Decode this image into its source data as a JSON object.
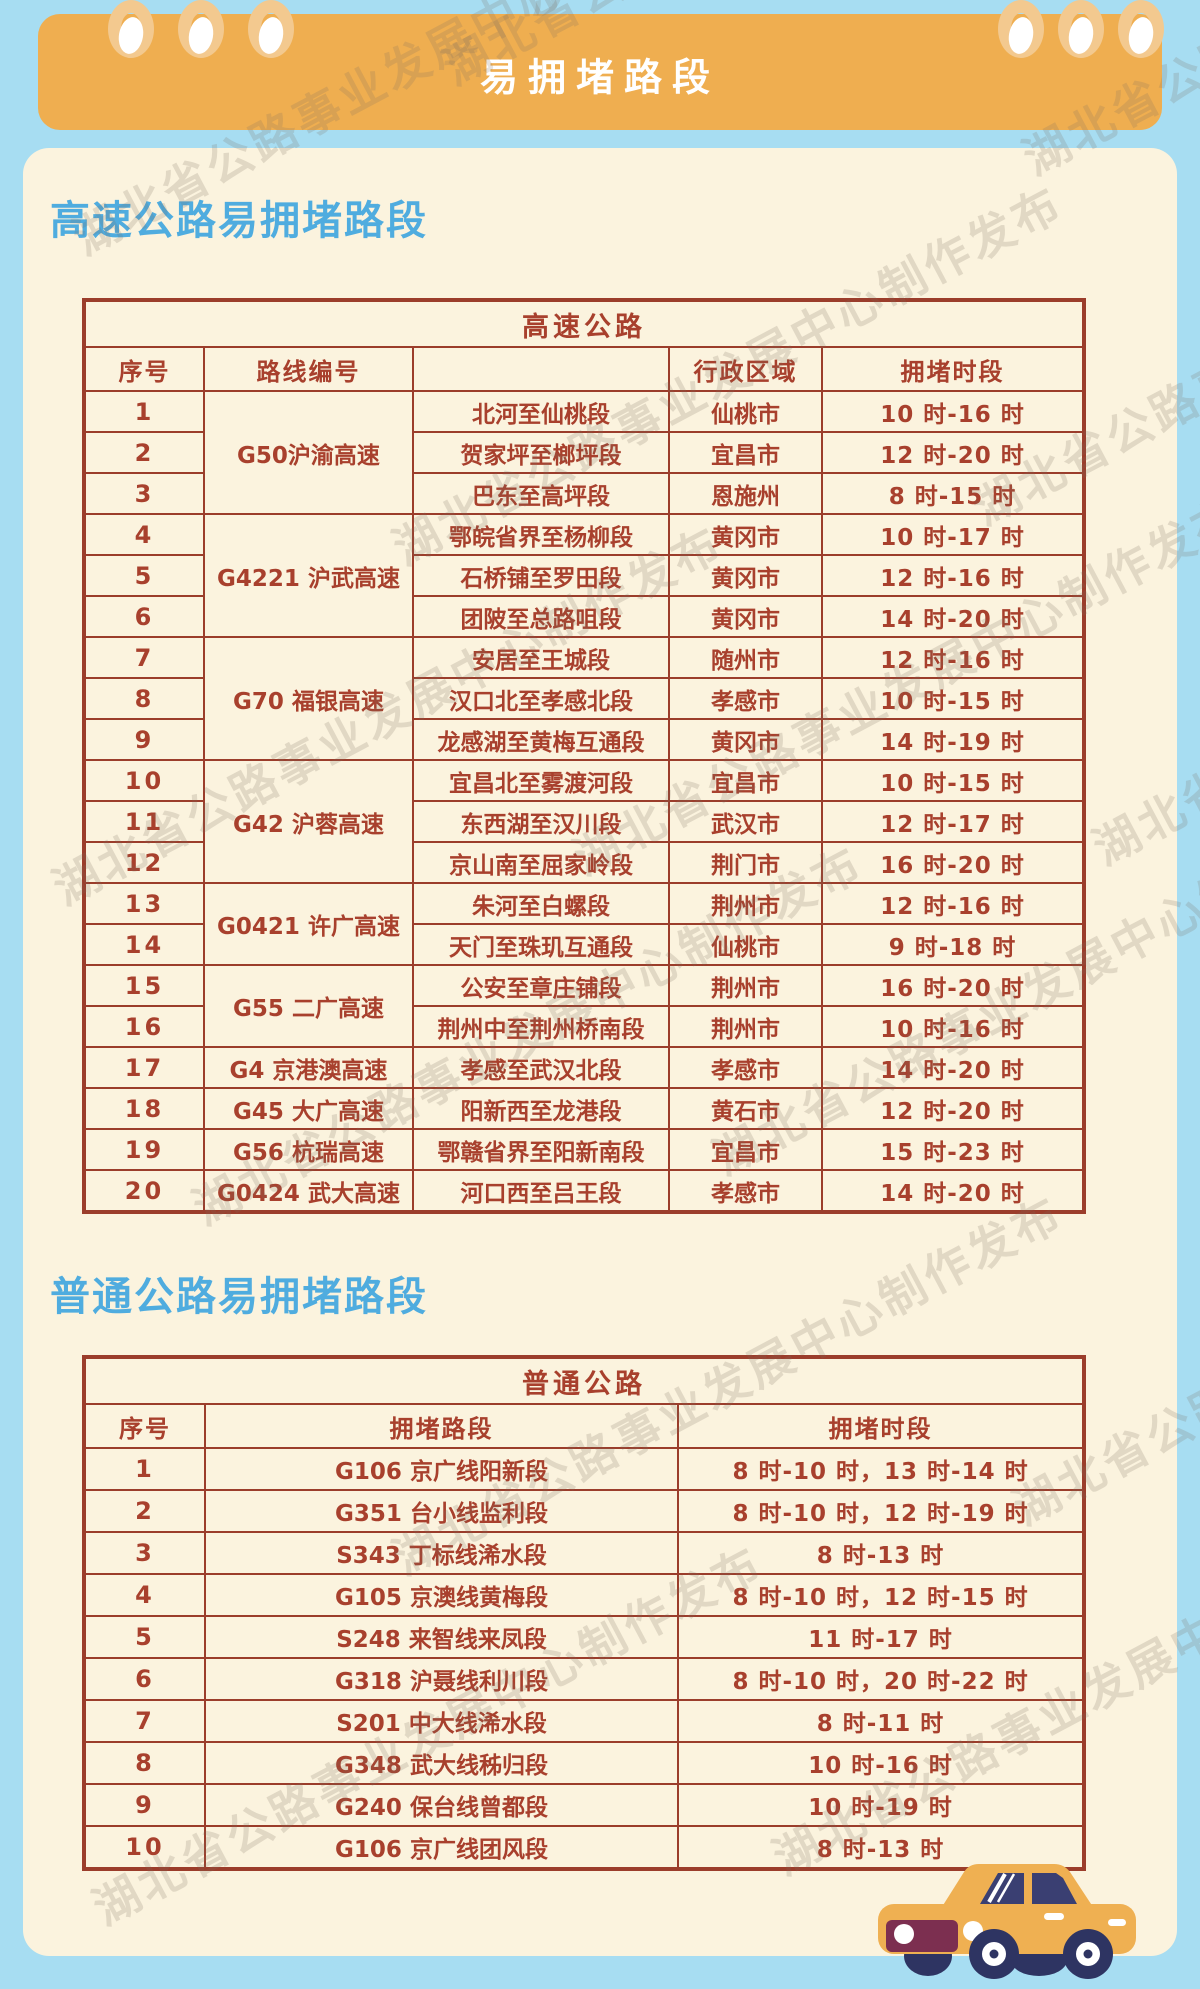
{
  "header": {
    "title": "易拥堵路段"
  },
  "watermark_text": "湖北省公路事业发展中心制作发布",
  "colors": {
    "background_blue": "#A7DDF2",
    "banner_orange": "#EFAE50",
    "ring_orange": "#F3C98F",
    "card_cream": "#FBF3DE",
    "heading_blue": "#4FACDF",
    "table_border_red": "#9B3D2B",
    "table_text_red": "#A8402D",
    "car_body_orange": "#EFB052",
    "car_window_navy": "#3A3F72",
    "car_bumper_maroon": "#7C2F50",
    "car_wheel_navy": "#2E3462"
  },
  "expressway_section": {
    "heading": "高速公路易拥堵路段",
    "table": {
      "title": "高速公路",
      "columns": [
        "序号",
        "路线编号",
        "",
        "行政区域",
        "拥堵时段"
      ],
      "route_groups": [
        {
          "label": "G50沪渝高速",
          "span": 3
        },
        {
          "label": "G4221 沪武高速",
          "span": 3
        },
        {
          "label": "G70 福银高速",
          "span": 3
        },
        {
          "label": "G42 沪蓉高速",
          "span": 3
        },
        {
          "label": "G0421 许广高速",
          "span": 2
        },
        {
          "label": "G55 二广高速",
          "span": 2
        },
        {
          "label": "G4 京港澳高速",
          "span": 1
        },
        {
          "label": "G45 大广高速",
          "span": 1
        },
        {
          "label": "G56 杭瑞高速",
          "span": 1
        },
        {
          "label": "G0424 武大高速",
          "span": 1
        }
      ],
      "rows": [
        {
          "no": "1",
          "segment": "北河至仙桃段",
          "region": "仙桃市",
          "time": "10 时-16 时"
        },
        {
          "no": "2",
          "segment": "贺家坪至榔坪段",
          "region": "宜昌市",
          "time": "12 时-20 时"
        },
        {
          "no": "3",
          "segment": "巴东至高坪段",
          "region": "恩施州",
          "time": "8 时-15 时"
        },
        {
          "no": "4",
          "segment": "鄂皖省界至杨柳段",
          "region": "黄冈市",
          "time": "10 时-17 时"
        },
        {
          "no": "5",
          "segment": "石桥铺至罗田段",
          "region": "黄冈市",
          "time": "12 时-16 时"
        },
        {
          "no": "6",
          "segment": "团陂至总路咀段",
          "region": "黄冈市",
          "time": "14 时-20 时"
        },
        {
          "no": "7",
          "segment": "安居至王城段",
          "region": "随州市",
          "time": "12 时-16 时"
        },
        {
          "no": "8",
          "segment": "汉口北至孝感北段",
          "region": "孝感市",
          "time": "10 时-15 时"
        },
        {
          "no": "9",
          "segment": "龙感湖至黄梅互通段",
          "region": "黄冈市",
          "time": "14 时-19 时"
        },
        {
          "no": "10",
          "segment": "宜昌北至雾渡河段",
          "region": "宜昌市",
          "time": "10 时-15 时"
        },
        {
          "no": "11",
          "segment": "东西湖至汉川段",
          "region": "武汉市",
          "time": "12 时-17 时"
        },
        {
          "no": "12",
          "segment": "京山南至屈家岭段",
          "region": "荆门市",
          "time": "16 时-20 时"
        },
        {
          "no": "13",
          "segment": "朱河至白螺段",
          "region": "荆州市",
          "time": "12 时-16 时"
        },
        {
          "no": "14",
          "segment": "天门至珠玑互通段",
          "region": "仙桃市",
          "time": "9 时-18 时"
        },
        {
          "no": "15",
          "segment": "公安至章庄铺段",
          "region": "荆州市",
          "time": "16 时-20 时"
        },
        {
          "no": "16",
          "segment": "荆州中至荆州桥南段",
          "region": "荆州市",
          "time": "10 时-16 时"
        },
        {
          "no": "17",
          "segment": "孝感至武汉北段",
          "region": "孝感市",
          "time": "14 时-20 时"
        },
        {
          "no": "18",
          "segment": "阳新西至龙港段",
          "region": "黄石市",
          "time": "12 时-20 时"
        },
        {
          "no": "19",
          "segment": "鄂赣省界至阳新南段",
          "region": "宜昌市",
          "time": "15 时-23 时"
        },
        {
          "no": "20",
          "segment": "河口西至吕王段",
          "region": "孝感市",
          "time": "14 时-20 时"
        }
      ]
    }
  },
  "ordinary_section": {
    "heading": "普通公路易拥堵路段",
    "table": {
      "title": "普通公路",
      "columns": [
        "序号",
        "拥堵路段",
        "拥堵时段"
      ],
      "rows": [
        {
          "no": "1",
          "segment": "G106 京广线阳新段",
          "time": "8 时-10 时，13 时-14 时"
        },
        {
          "no": "2",
          "segment": "G351 台小线监利段",
          "time": "8 时-10 时，12 时-19 时"
        },
        {
          "no": "3",
          "segment": "S343 丁标线浠水段",
          "time": "8 时-13 时"
        },
        {
          "no": "4",
          "segment": "G105 京澳线黄梅段",
          "time": "8 时-10 时，12 时-15 时"
        },
        {
          "no": "5",
          "segment": "S248 来智线来凤段",
          "time": "11 时-17 时"
        },
        {
          "no": "6",
          "segment": "G318 沪聂线利川段",
          "time": "8 时-10 时，20 时-22 时"
        },
        {
          "no": "7",
          "segment": "S201 中大线浠水段",
          "time": "8 时-11 时"
        },
        {
          "no": "8",
          "segment": "G348 武大线秭归段",
          "time": "10 时-16 时"
        },
        {
          "no": "9",
          "segment": "G240 保台线曾都段",
          "time": "10 时-19 时"
        },
        {
          "no": "10",
          "segment": "G106 京广线团风段",
          "time": "8 时-13 时"
        }
      ]
    }
  }
}
